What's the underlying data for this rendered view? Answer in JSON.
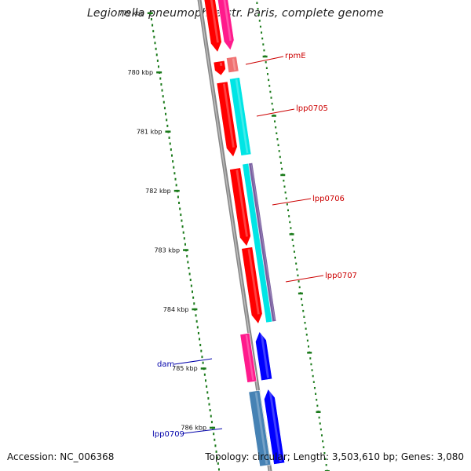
{
  "title": "Legionella pneumophila str. Paris, complete genome",
  "footer": {
    "accession": "Accession: NC_006368",
    "summary": "Topology: circular; Length: 3,503,610 bp; Genes: 3,080"
  },
  "scale": {
    "ticks": [
      {
        "label": "779 kbp",
        "kbp": 779
      },
      {
        "label": "780 kbp",
        "kbp": 780
      },
      {
        "label": "781 kbp",
        "kbp": 781
      },
      {
        "label": "782 kbp",
        "kbp": 782
      },
      {
        "label": "783 kbp",
        "kbp": 783
      },
      {
        "label": "784 kbp",
        "kbp": 784
      },
      {
        "label": "785 kbp",
        "kbp": 785
      },
      {
        "label": "786 kbp",
        "kbp": 786
      }
    ],
    "tick_color": "#1a7a1a"
  },
  "genes": [
    {
      "name": "rpmE",
      "color": "#cc0000"
    },
    {
      "name": "lpp0705",
      "color": "#cc0000"
    },
    {
      "name": "lpp0706",
      "color": "#cc0000"
    },
    {
      "name": "lpp0707",
      "color": "#cc0000"
    },
    {
      "name": "dam",
      "color": "#0000aa"
    },
    {
      "name": "lpp0709",
      "color": "#0000aa"
    }
  ],
  "colors": {
    "cds_red": "#ff0000",
    "gene_pink": "#ff1a8c",
    "rrna_cyan": "#00e5e5",
    "trna_purple": "#7a5fa0",
    "cds_blue": "#0000ff",
    "steel_blue": "#4682b4",
    "salmon": "#f07070",
    "backbone": "#888888"
  }
}
